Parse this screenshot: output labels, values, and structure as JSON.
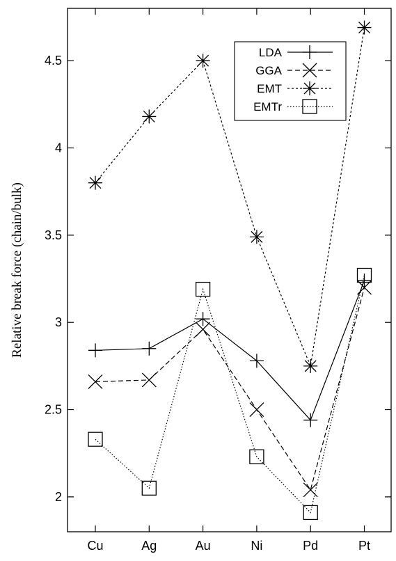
{
  "chart_data": {
    "type": "line",
    "title": "",
    "xlabel": "",
    "ylabel": "Relative break force (chain/bulk)",
    "categories": [
      "Cu",
      "Ag",
      "Au",
      "Ni",
      "Pd",
      "Pt"
    ],
    "ylim": [
      1.8,
      4.8
    ],
    "yticks": [
      "2",
      "2.5",
      "3",
      "3.5",
      "4",
      "4.5"
    ],
    "grid": false,
    "legend_position": "top-right",
    "series": [
      {
        "name": "LDA",
        "values": [
          2.84,
          2.85,
          3.02,
          2.78,
          2.44,
          3.24
        ],
        "marker": "plus",
        "line": "solid"
      },
      {
        "name": "GGA",
        "values": [
          2.66,
          2.67,
          2.96,
          2.5,
          2.04,
          3.2
        ],
        "marker": "cross",
        "line": "dashed"
      },
      {
        "name": "EMT",
        "values": [
          3.8,
          4.18,
          4.5,
          3.49,
          2.75,
          4.69
        ],
        "marker": "star",
        "line": "dotted"
      },
      {
        "name": "EMTr",
        "values": [
          2.33,
          2.05,
          3.19,
          2.23,
          1.91,
          3.27
        ],
        "marker": "square",
        "line": "dotted-fine"
      }
    ]
  }
}
